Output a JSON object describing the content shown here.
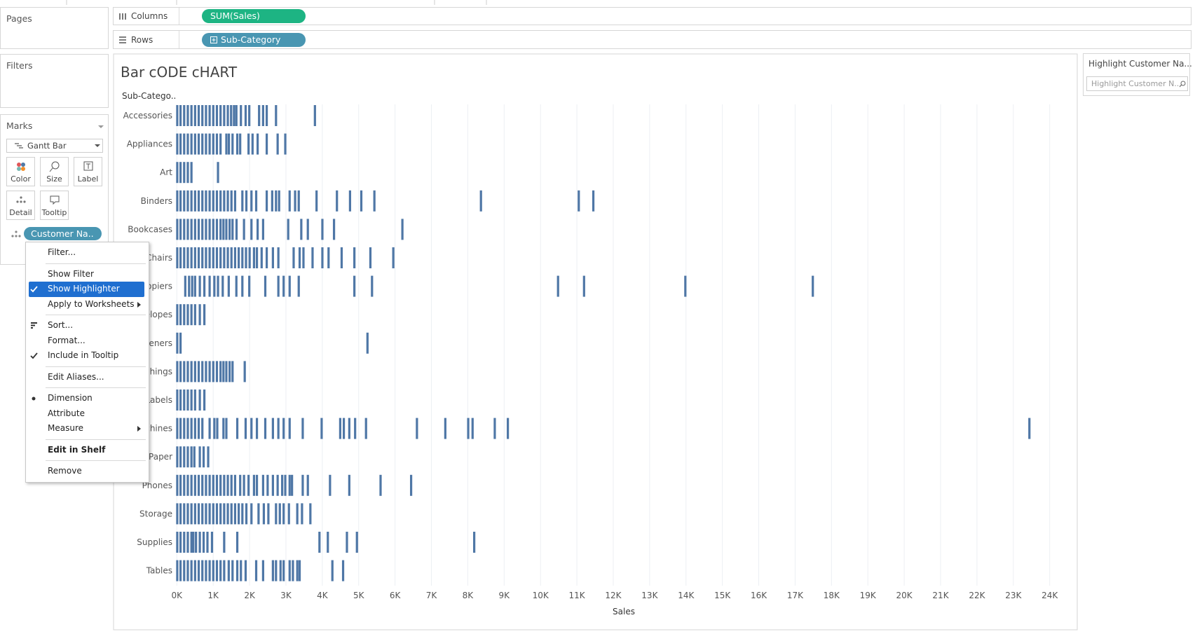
{
  "pages_card": {
    "title": "Pages"
  },
  "filters_card": {
    "title": "Filters"
  },
  "marks_card": {
    "title": "Marks",
    "mark_type": "Gantt Bar",
    "buttons": [
      "Color",
      "Size",
      "Label",
      "Detail",
      "Tooltip"
    ],
    "pill": "Customer Na..",
    "pill_color": "#4996b2"
  },
  "shelves": {
    "columns": {
      "label": "Columns",
      "pill": "SUM(Sales)",
      "color": "#1db483"
    },
    "rows": {
      "label": "Rows",
      "pill": "Sub-Category",
      "color": "#4996b2"
    }
  },
  "highlighter": {
    "title": "Highlight Customer Na...",
    "placeholder": "Highlight Customer N..."
  },
  "context_menu": {
    "groups": [
      [
        {
          "label": "Filter..."
        }
      ],
      [
        {
          "label": "Show Filter"
        },
        {
          "label": "Show Highlighter",
          "marker": "check",
          "highlighted": true
        },
        {
          "label": "Apply to Worksheets",
          "submenu": true
        }
      ],
      [
        {
          "label": "Sort...",
          "marker": "sort"
        },
        {
          "label": "Format..."
        },
        {
          "label": "Include in Tooltip",
          "marker": "check"
        }
      ],
      [
        {
          "label": "Edit Aliases..."
        }
      ],
      [
        {
          "label": "Dimension",
          "marker": "bullet"
        },
        {
          "label": "Attribute"
        },
        {
          "label": "Measure",
          "submenu": true
        }
      ],
      [
        {
          "label": "Edit in Shelf",
          "bold": true
        }
      ],
      [
        {
          "label": "Remove"
        }
      ]
    ]
  },
  "chart_data": {
    "type": "barcode",
    "title": "Bar cODE cHART",
    "y_header": "Sub-Catego..",
    "x_label": "Sales",
    "color": "#4f77a6",
    "grid": true,
    "categories": [
      "Accessories",
      "Appliances",
      "Art",
      "Binders",
      "Bookcases",
      "Chairs",
      "Copiers",
      "Envelopes",
      "Fasteners",
      "Furnishings",
      "Labels",
      "Machines",
      "Paper",
      "Phones",
      "Storage",
      "Supplies",
      "Tables"
    ],
    "values": [
      [
        10,
        100,
        200,
        300,
        400,
        500,
        600,
        700,
        800,
        900,
        1000,
        1100,
        1200,
        1300,
        1400,
        1490,
        1570,
        1635,
        1760,
        1890,
        1990,
        2260,
        2370,
        2470,
        2725,
        3795
      ],
      [
        10,
        100,
        200,
        300,
        400,
        500,
        600,
        700,
        800,
        900,
        1000,
        1100,
        1200,
        1360,
        1430,
        1530,
        1660,
        1740,
        1970,
        2080,
        2220,
        2470,
        2770,
        2980
      ],
      [
        10,
        100,
        200,
        300,
        400,
        1130
      ],
      [
        10,
        100,
        200,
        300,
        400,
        500,
        600,
        700,
        800,
        900,
        1000,
        1100,
        1200,
        1300,
        1400,
        1500,
        1600,
        1800,
        1910,
        2050,
        2180,
        2470,
        2620,
        2725,
        2810,
        3100,
        3250,
        3350,
        3840,
        4400,
        4760,
        5070,
        5430,
        8360,
        11050,
        11450
      ],
      [
        10,
        100,
        200,
        300,
        400,
        500,
        600,
        700,
        800,
        900,
        1000,
        1100,
        1200,
        1280,
        1360,
        1450,
        1530,
        1640,
        1845,
        2050,
        2220,
        2370,
        3060,
        3420,
        3600,
        4000,
        4320,
        6200
      ],
      [
        10,
        100,
        200,
        300,
        400,
        500,
        600,
        700,
        800,
        900,
        1000,
        1100,
        1200,
        1300,
        1400,
        1500,
        1600,
        1700,
        1800,
        1900,
        2000,
        2120,
        2200,
        2330,
        2470,
        2640,
        2790,
        3210,
        3375,
        3480,
        3730,
        4000,
        4170,
        4530,
        4880,
        5320,
        5950
      ],
      [
        230,
        335,
        420,
        500,
        630,
        755,
        900,
        1030,
        1130,
        1260,
        1425,
        1635,
        1800,
        1990,
        2430,
        2790,
        2935,
        3100,
        3350,
        4880,
        5365,
        10480,
        11195,
        13980,
        17485
      ],
      [
        10,
        100,
        200,
        300,
        400,
        500,
        630,
        755
      ],
      [
        10,
        100,
        5240
      ],
      [
        10,
        100,
        200,
        300,
        400,
        500,
        600,
        700,
        800,
        900,
        1000,
        1100,
        1200,
        1280,
        1360,
        1450,
        1530,
        1865
      ],
      [
        10,
        100,
        200,
        300,
        400,
        500,
        630,
        755
      ],
      [
        10,
        100,
        200,
        300,
        400,
        500,
        600,
        700,
        900,
        1030,
        1110,
        1280,
        1360,
        1660,
        1890,
        2050,
        2200,
        2430,
        2640,
        2790,
        2935,
        3100,
        3460,
        3980,
        4490,
        4590,
        4740,
        4900,
        5200,
        6600,
        7380,
        8010,
        8130,
        8740,
        9100,
        23440
      ],
      [
        10,
        100,
        200,
        300,
        400,
        480,
        630,
        735,
        860
      ],
      [
        10,
        100,
        200,
        300,
        400,
        500,
        600,
        700,
        800,
        900,
        1000,
        1100,
        1200,
        1300,
        1400,
        1500,
        1600,
        1740,
        1845,
        1970,
        2120,
        2200,
        2370,
        2495,
        2640,
        2770,
        2895,
        2980,
        3100,
        3165,
        3460,
        3600,
        4210,
        4740,
        5600,
        6440
      ],
      [
        10,
        100,
        200,
        300,
        400,
        500,
        600,
        700,
        800,
        900,
        1000,
        1100,
        1200,
        1300,
        1400,
        1500,
        1600,
        1700,
        1800,
        1910,
        2050,
        2245,
        2390,
        2515,
        2725,
        2830,
        2935,
        3080,
        3310,
        3440,
        3670
      ],
      [
        10,
        100,
        200,
        300,
        400,
        450,
        525,
        630,
        735,
        840,
        965,
        1300,
        1660,
        3920,
        4150,
        4675,
        4950,
        8175
      ],
      [
        10,
        100,
        200,
        300,
        400,
        500,
        600,
        700,
        800,
        900,
        1000,
        1100,
        1200,
        1300,
        1425,
        1530,
        1660,
        1760,
        1890,
        2180,
        2370,
        2640,
        2725,
        2850,
        2935,
        3100,
        3190,
        3310,
        3375,
        4275,
        4570
      ]
    ],
    "xlim": [
      0,
      24700
    ],
    "xticks": [
      {
        "value": 0,
        "label": "0K"
      },
      {
        "value": 1000,
        "label": "1K"
      },
      {
        "value": 2000,
        "label": "2K"
      },
      {
        "value": 3000,
        "label": "3K"
      },
      {
        "value": 4000,
        "label": "4K"
      },
      {
        "value": 5000,
        "label": "5K"
      },
      {
        "value": 6000,
        "label": "6K"
      },
      {
        "value": 7000,
        "label": "7K"
      },
      {
        "value": 8000,
        "label": "8K"
      },
      {
        "value": 9000,
        "label": "9K"
      },
      {
        "value": 10000,
        "label": "10K"
      },
      {
        "value": 11000,
        "label": "11K"
      },
      {
        "value": 12000,
        "label": "12K"
      },
      {
        "value": 13000,
        "label": "13K"
      },
      {
        "value": 14000,
        "label": "14K"
      },
      {
        "value": 15000,
        "label": "15K"
      },
      {
        "value": 16000,
        "label": "16K"
      },
      {
        "value": 17000,
        "label": "17K"
      },
      {
        "value": 18000,
        "label": "18K"
      },
      {
        "value": 19000,
        "label": "19K"
      },
      {
        "value": 20000,
        "label": "20K"
      },
      {
        "value": 21000,
        "label": "21K"
      },
      {
        "value": 22000,
        "label": "22K"
      },
      {
        "value": 23000,
        "label": "23K"
      },
      {
        "value": 24000,
        "label": "24K"
      }
    ]
  }
}
